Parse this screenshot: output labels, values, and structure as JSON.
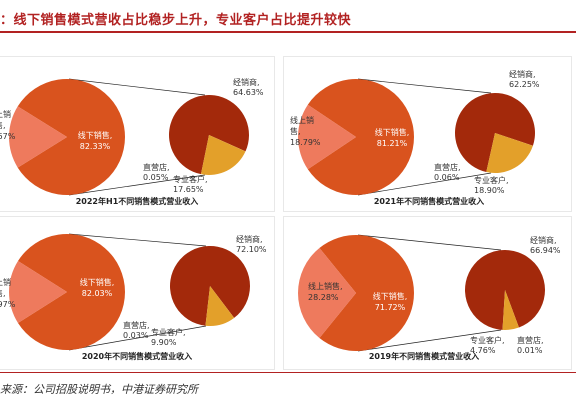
{
  "header": {
    "title": "：线下销售模式营收占比稳步上升，专业客户占比提升较快"
  },
  "footer": {
    "source": "来源：公司招股说明书，中港证券研究所"
  },
  "colors": {
    "offline": "#d9531e",
    "online": "#ee7a5d",
    "distributor": "#a3290b",
    "professional": "#e3a02a",
    "direct": "#f6c877",
    "title_red": "#b22222"
  },
  "chart_data": [
    {
      "type": "pie",
      "title": "2022年H1不同销售模式营业收入",
      "main_pie": [
        {
          "label": "线上销售",
          "display": [
            "上销",
            "售,",
            ".67%"
          ],
          "value": 17.67
        },
        {
          "label": "线下销售",
          "display": [
            "线下销售,",
            "82.33%"
          ],
          "value": 82.33
        }
      ],
      "sub_pie": [
        {
          "label": "经销商",
          "display": [
            "经销商,",
            "64.63%"
          ],
          "value": 64.63
        },
        {
          "label": "专业客户",
          "display": [
            "专业客户,",
            "17.65%"
          ],
          "value": 17.65
        },
        {
          "label": "直营店",
          "display": [
            "直营店,",
            "0.05%"
          ],
          "value": 0.05
        }
      ]
    },
    {
      "type": "pie",
      "title": "2021年不同销售模式营业收入",
      "main_pie": [
        {
          "label": "线上销售",
          "display": [
            "线上销",
            "售,",
            "18.79%"
          ],
          "value": 18.79
        },
        {
          "label": "线下销售",
          "display": [
            "线下销售,",
            "81.21%"
          ],
          "value": 81.21
        }
      ],
      "sub_pie": [
        {
          "label": "经销商",
          "display": [
            "经销商,",
            "62.25%"
          ],
          "value": 62.25
        },
        {
          "label": "专业客户",
          "display": [
            "专业客户,",
            "18.90%"
          ],
          "value": 18.9
        },
        {
          "label": "直营店",
          "display": [
            "直营店,",
            "0.06%"
          ],
          "value": 0.06
        }
      ]
    },
    {
      "type": "pie",
      "title": "2020年不同销售模式营业收入",
      "main_pie": [
        {
          "label": "线上销售",
          "display": [
            "上销",
            "售,",
            ".97%"
          ],
          "value": 17.97
        },
        {
          "label": "线下销售",
          "display": [
            "线下销售,",
            "82.03%"
          ],
          "value": 82.03
        }
      ],
      "sub_pie": [
        {
          "label": "经销商",
          "display": [
            "经销商,",
            "72.10%"
          ],
          "value": 72.1
        },
        {
          "label": "专业客户",
          "display": [
            "专业客户,",
            "9.90%"
          ],
          "value": 9.9
        },
        {
          "label": "直营店",
          "display": [
            "直营店,",
            "0.03%"
          ],
          "value": 0.03
        }
      ]
    },
    {
      "type": "pie",
      "title": "2019年不同销售模式营业收入",
      "main_pie": [
        {
          "label": "线上销售",
          "display": [
            "线上销售,",
            "28.28%"
          ],
          "value": 28.28
        },
        {
          "label": "线下销售",
          "display": [
            "线下销售,",
            "71.72%"
          ],
          "value": 71.72
        }
      ],
      "sub_pie": [
        {
          "label": "经销商",
          "display": [
            "经销商,",
            "66.94%"
          ],
          "value": 66.94
        },
        {
          "label": "专业客户",
          "display": [
            "专业客户,",
            "4.76%"
          ],
          "value": 4.76
        },
        {
          "label": "直营店",
          "display": [
            "直营店,",
            "0.01%"
          ],
          "value": 0.01
        }
      ]
    }
  ]
}
